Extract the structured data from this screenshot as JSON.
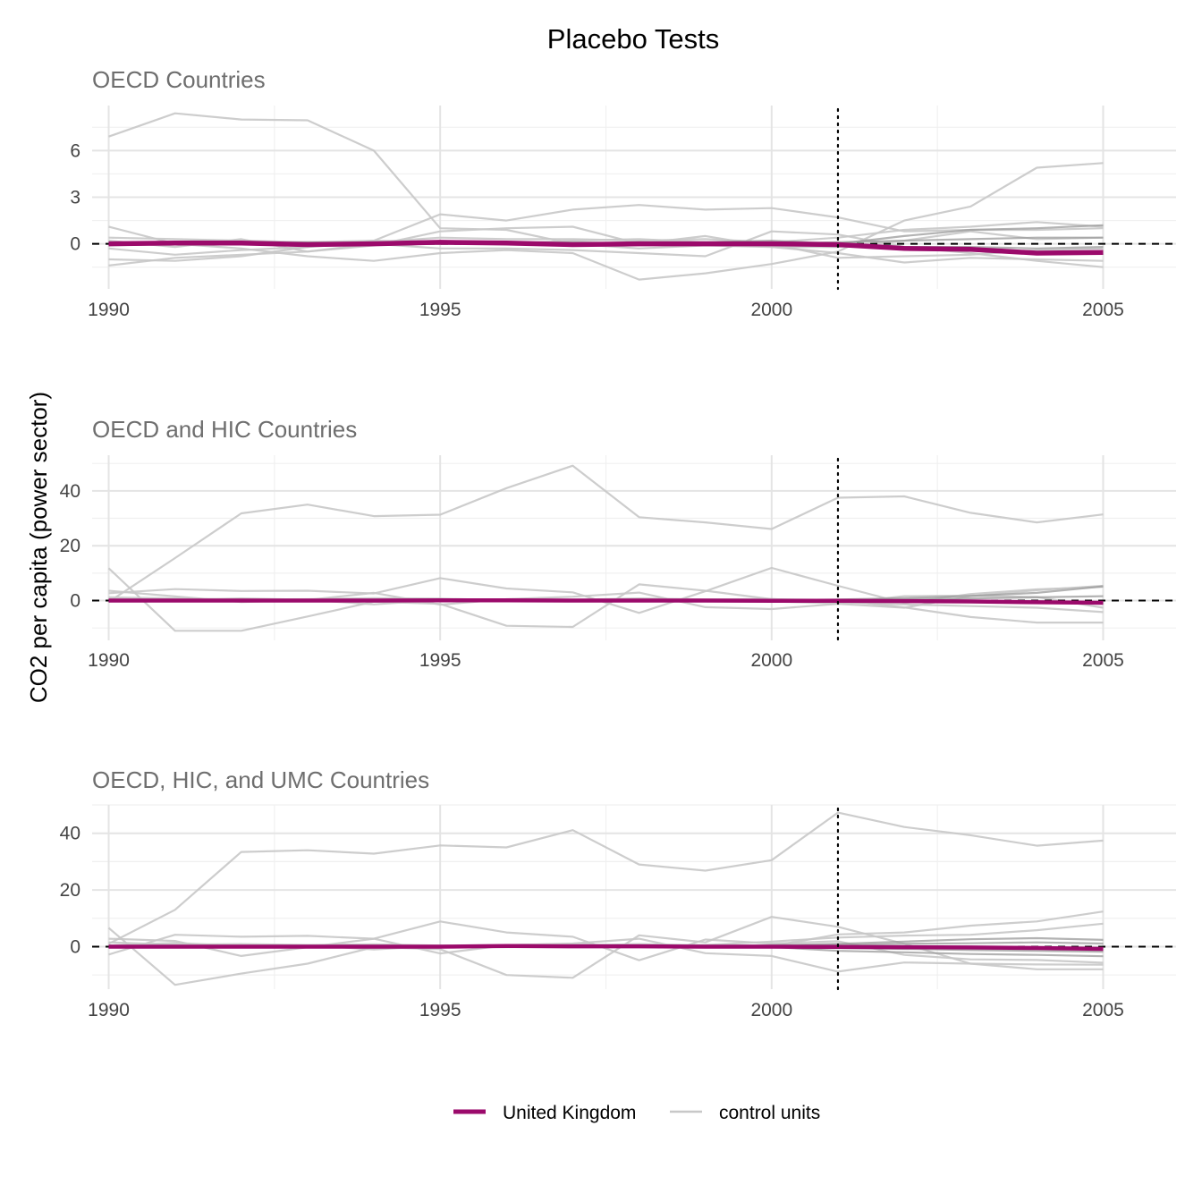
{
  "colors": {
    "treated": "#9b0a6b",
    "control": "#c8c8c8",
    "control_dark": "#9a9a9a",
    "grid_major": "#e4e4e4",
    "grid_minor": "#f0f0f0",
    "zero_line": "#000000",
    "event_line": "#000000"
  },
  "chart_data": {
    "type": "line",
    "title": "Placebo Tests",
    "ylabel": "CO2 per capita (power sector)",
    "event_year": 2001,
    "legend": {
      "position": "bottom",
      "entries": [
        {
          "name": "United Kingdom",
          "color": "#9b0a6b"
        },
        {
          "name": "control units",
          "color": "#c8c8c8"
        }
      ]
    },
    "x": [
      1990,
      1991,
      1992,
      1993,
      1994,
      1995,
      1996,
      1997,
      1998,
      1999,
      2000,
      2001,
      2002,
      2003,
      2004,
      2005
    ],
    "xlim": [
      1989.75,
      2006.1
    ],
    "xticks": [
      1990,
      1995,
      2000,
      2005
    ],
    "panels": [
      {
        "subtitle": "OECD Countries",
        "ylim": [
          -2.9,
          8.9
        ],
        "yticks": [
          0,
          3,
          6
        ],
        "minor_yticks": [
          -1.5,
          1.5,
          4.5,
          7.5
        ],
        "treated": {
          "name": "United Kingdom",
          "values": [
            0,
            0.05,
            0.05,
            -0.05,
            0,
            0.1,
            0.05,
            -0.05,
            0,
            0,
            0,
            -0.05,
            -0.3,
            -0.35,
            -0.6,
            -0.55
          ]
        },
        "controls": [
          {
            "values": [
              6.9,
              8.4,
              8.0,
              7.95,
              6.0,
              1.0,
              0.9,
              0.0,
              -0.3,
              -0.1,
              -0.2,
              -0.6,
              -1.2,
              -0.9,
              -1.0,
              -1.1
            ]
          },
          {
            "values": [
              1.1,
              0.0,
              -0.3,
              -0.8,
              -1.1,
              -0.6,
              -0.4,
              -0.6,
              -2.3,
              -1.9,
              -1.3,
              -0.5,
              1.5,
              2.4,
              4.9,
              5.2
            ]
          },
          {
            "values": [
              -1.0,
              -1.1,
              -0.8,
              -0.2,
              0.2,
              1.9,
              1.5,
              2.2,
              2.5,
              2.2,
              2.3,
              1.7,
              0.8,
              0.9,
              0.9,
              1.0
            ]
          },
          {
            "values": [
              -1.4,
              -0.9,
              -0.7,
              -0.5,
              -0.1,
              0.8,
              1.0,
              1.1,
              0.0,
              0.5,
              -0.2,
              -0.2,
              0.2,
              0.8,
              0.3,
              0.4
            ]
          },
          {
            "values": [
              0.2,
              -0.2,
              0.3,
              -0.5,
              0.0,
              -0.3,
              -0.3,
              -0.4,
              -0.6,
              -0.8,
              0.8,
              0.6,
              -0.2,
              -0.6,
              -1.1,
              -1.5
            ]
          },
          {
            "values": [
              -0.3,
              -0.7,
              -0.4,
              -0.2,
              0.1,
              0.4,
              0.3,
              0.3,
              0.2,
              0.3,
              0.1,
              0.4,
              0.9,
              1.1,
              1.4,
              1.1
            ]
          },
          {
            "values": [
              0.4,
              0.3,
              0.2,
              0.1,
              0.2,
              0.1,
              0.0,
              0.2,
              0.3,
              0.1,
              0.0,
              -0.9,
              -0.8,
              -0.7,
              -0.4,
              -0.3
            ]
          },
          {
            "dark": true,
            "values": [
              0.1,
              0.0,
              0.1,
              0.0,
              0.0,
              0.1,
              0.1,
              0.0,
              0.0,
              0.1,
              0.2,
              0.0,
              0.5,
              0.9,
              1.0,
              1.2
            ]
          },
          {
            "dark": true,
            "values": [
              -0.1,
              0.0,
              0.0,
              0.1,
              0.0,
              0.0,
              0.0,
              0.1,
              0.0,
              0.0,
              0.0,
              0.1,
              0.2,
              0.3,
              0.4,
              0.4
            ]
          },
          {
            "dark": true,
            "values": [
              0.0,
              0.1,
              0.0,
              0.0,
              0.1,
              0.0,
              0.0,
              0.0,
              0.1,
              0.0,
              0.1,
              -0.1,
              -0.2,
              -0.2,
              -0.3,
              -0.2
            ]
          }
        ]
      },
      {
        "subtitle": "OECD and HIC Countries",
        "ylim": [
          -14.5,
          53
        ],
        "yticks": [
          0,
          20,
          40
        ],
        "minor_yticks": [
          -10,
          10,
          30,
          50
        ],
        "treated": {
          "name": "United Kingdom",
          "values": [
            0,
            0,
            0,
            0,
            0,
            0.1,
            0.1,
            0,
            0,
            0,
            -0.1,
            -0.1,
            -0.2,
            -0.3,
            -0.6,
            -0.8
          ]
        },
        "controls": [
          {
            "values": [
              -0.5,
              15.5,
              31.8,
              35.0,
              30.8,
              31.3,
              41.0,
              49.2,
              30.4,
              28.5,
              26.1,
              37.5,
              38.0,
              32.0,
              28.5,
              31.4
            ]
          },
          {
            "values": [
              11.8,
              -11.0,
              -11.0,
              -5.8,
              -0.4,
              -1.2,
              -9.2,
              -9.6,
              5.9,
              3.6,
              0.5,
              0.2,
              -2.5,
              -6.0,
              -8.0,
              -8.0
            ]
          },
          {
            "values": [
              2.7,
              4.2,
              3.5,
              3.6,
              2.6,
              8.2,
              4.4,
              3.0,
              -4.5,
              3.4,
              11.9,
              5.4,
              -0.9,
              2.4,
              4.1,
              5.0
            ]
          },
          {
            "values": [
              3.6,
              1.5,
              -0.5,
              0.2,
              2.8,
              -1.5,
              0.5,
              1.4,
              2.9,
              -2.4,
              -3.1,
              -1.2,
              -2.6,
              1.6,
              3.8,
              5.4
            ]
          },
          {
            "values": [
              0.5,
              0.2,
              0.8,
              0.3,
              -1.4,
              0.3,
              -0.1,
              0.2,
              0.5,
              0.1,
              -0.3,
              -1.0,
              1.6,
              1.8,
              1.3,
              -2.6
            ]
          },
          {
            "values": [
              1.2,
              0.8,
              0.4,
              0.5,
              0.9,
              0.7,
              0.1,
              0.3,
              0.8,
              0.4,
              0.6,
              -0.6,
              -1.4,
              -2.0,
              -2.6,
              -4.2
            ]
          },
          {
            "dark": true,
            "values": [
              0.2,
              0.1,
              0.3,
              0.1,
              0.0,
              0.2,
              0.1,
              0.1,
              0.2,
              0.0,
              0.1,
              0.4,
              0.9,
              1.7,
              2.8,
              5.2
            ]
          },
          {
            "dark": true,
            "values": [
              0.0,
              0.1,
              0.0,
              0.2,
              0.1,
              0.0,
              0.1,
              0.0,
              0.1,
              0.1,
              0.0,
              0.2,
              0.4,
              0.8,
              1.2,
              1.6
            ]
          }
        ]
      },
      {
        "subtitle": "OECD, HIC, and UMC Countries",
        "ylim": [
          -15,
          50
        ],
        "yticks": [
          0,
          20,
          40
        ],
        "minor_yticks": [
          -10,
          10,
          30,
          50
        ],
        "treated": {
          "name": "United Kingdom",
          "values": [
            0,
            0,
            0,
            0,
            0,
            0,
            0.2,
            0.1,
            0.1,
            0,
            0,
            -0.1,
            -0.2,
            -0.3,
            -0.5,
            -0.8
          ]
        },
        "controls": [
          {
            "values": [
              1.0,
              13.0,
              33.4,
              34.0,
              32.8,
              35.7,
              35.0,
              41.1,
              29.0,
              26.8,
              30.5,
              47.3,
              42.2,
              39.3,
              35.6,
              37.4
            ]
          },
          {
            "values": [
              6.6,
              -13.5,
              -9.5,
              -6.0,
              -0.2,
              -0.9,
              -10.0,
              -11.0,
              4.0,
              1.5,
              10.5,
              7.0,
              1.0,
              -6.0,
              -8.0,
              -8.0
            ]
          },
          {
            "values": [
              -2.8,
              4.2,
              3.5,
              3.8,
              2.8,
              8.9,
              5.0,
              3.5,
              -4.8,
              2.5,
              1.1,
              1.9,
              -2.9,
              -4.5,
              -4.7,
              -5.7
            ]
          },
          {
            "values": [
              2.8,
              2.0,
              -3.3,
              -0.2,
              2.8,
              -2.4,
              0.5,
              1.1,
              2.8,
              -2.3,
              -3.3,
              -8.8,
              -5.6,
              -6.0,
              -6.3,
              -6.4
            ]
          },
          {
            "values": [
              0.4,
              1.3,
              0.2,
              0.5,
              -1.0,
              0.3,
              -0.2,
              0.4,
              0.9,
              0.5,
              0.2,
              4.3,
              5.0,
              7.4,
              8.9,
              12.4
            ]
          },
          {
            "values": [
              1.5,
              0.7,
              0.9,
              0.6,
              0.8,
              0.4,
              0.6,
              0.9,
              0.3,
              0.6,
              1.8,
              3.2,
              3.9,
              4.2,
              5.8,
              8.1
            ]
          },
          {
            "dark": true,
            "values": [
              0.2,
              0.3,
              0.1,
              0.2,
              0.3,
              0.1,
              0.2,
              0.1,
              0.3,
              0.2,
              0.5,
              1.0,
              1.8,
              2.6,
              3.0,
              2.4
            ]
          },
          {
            "dark": true,
            "values": [
              0.0,
              0.1,
              0.0,
              0.1,
              0.0,
              0.1,
              0.0,
              0.1,
              0.0,
              0.2,
              0.3,
              0.6,
              1.0,
              1.2,
              1.5,
              1.1
            ]
          },
          {
            "dark": true,
            "values": [
              -0.1,
              0.0,
              0.1,
              0.0,
              -0.1,
              0.0,
              0.1,
              0.0,
              0.0,
              -0.1,
              -0.2,
              -0.5,
              -0.8,
              -1.2,
              -1.5,
              -1.8
            ]
          },
          {
            "dark": true,
            "values": [
              0.1,
              0.0,
              0.0,
              0.1,
              0.0,
              0.0,
              -0.1,
              0.0,
              0.1,
              0.0,
              -0.1,
              -1.5,
              -2.0,
              -2.6,
              -2.9,
              -3.4
            ]
          }
        ]
      }
    ]
  }
}
